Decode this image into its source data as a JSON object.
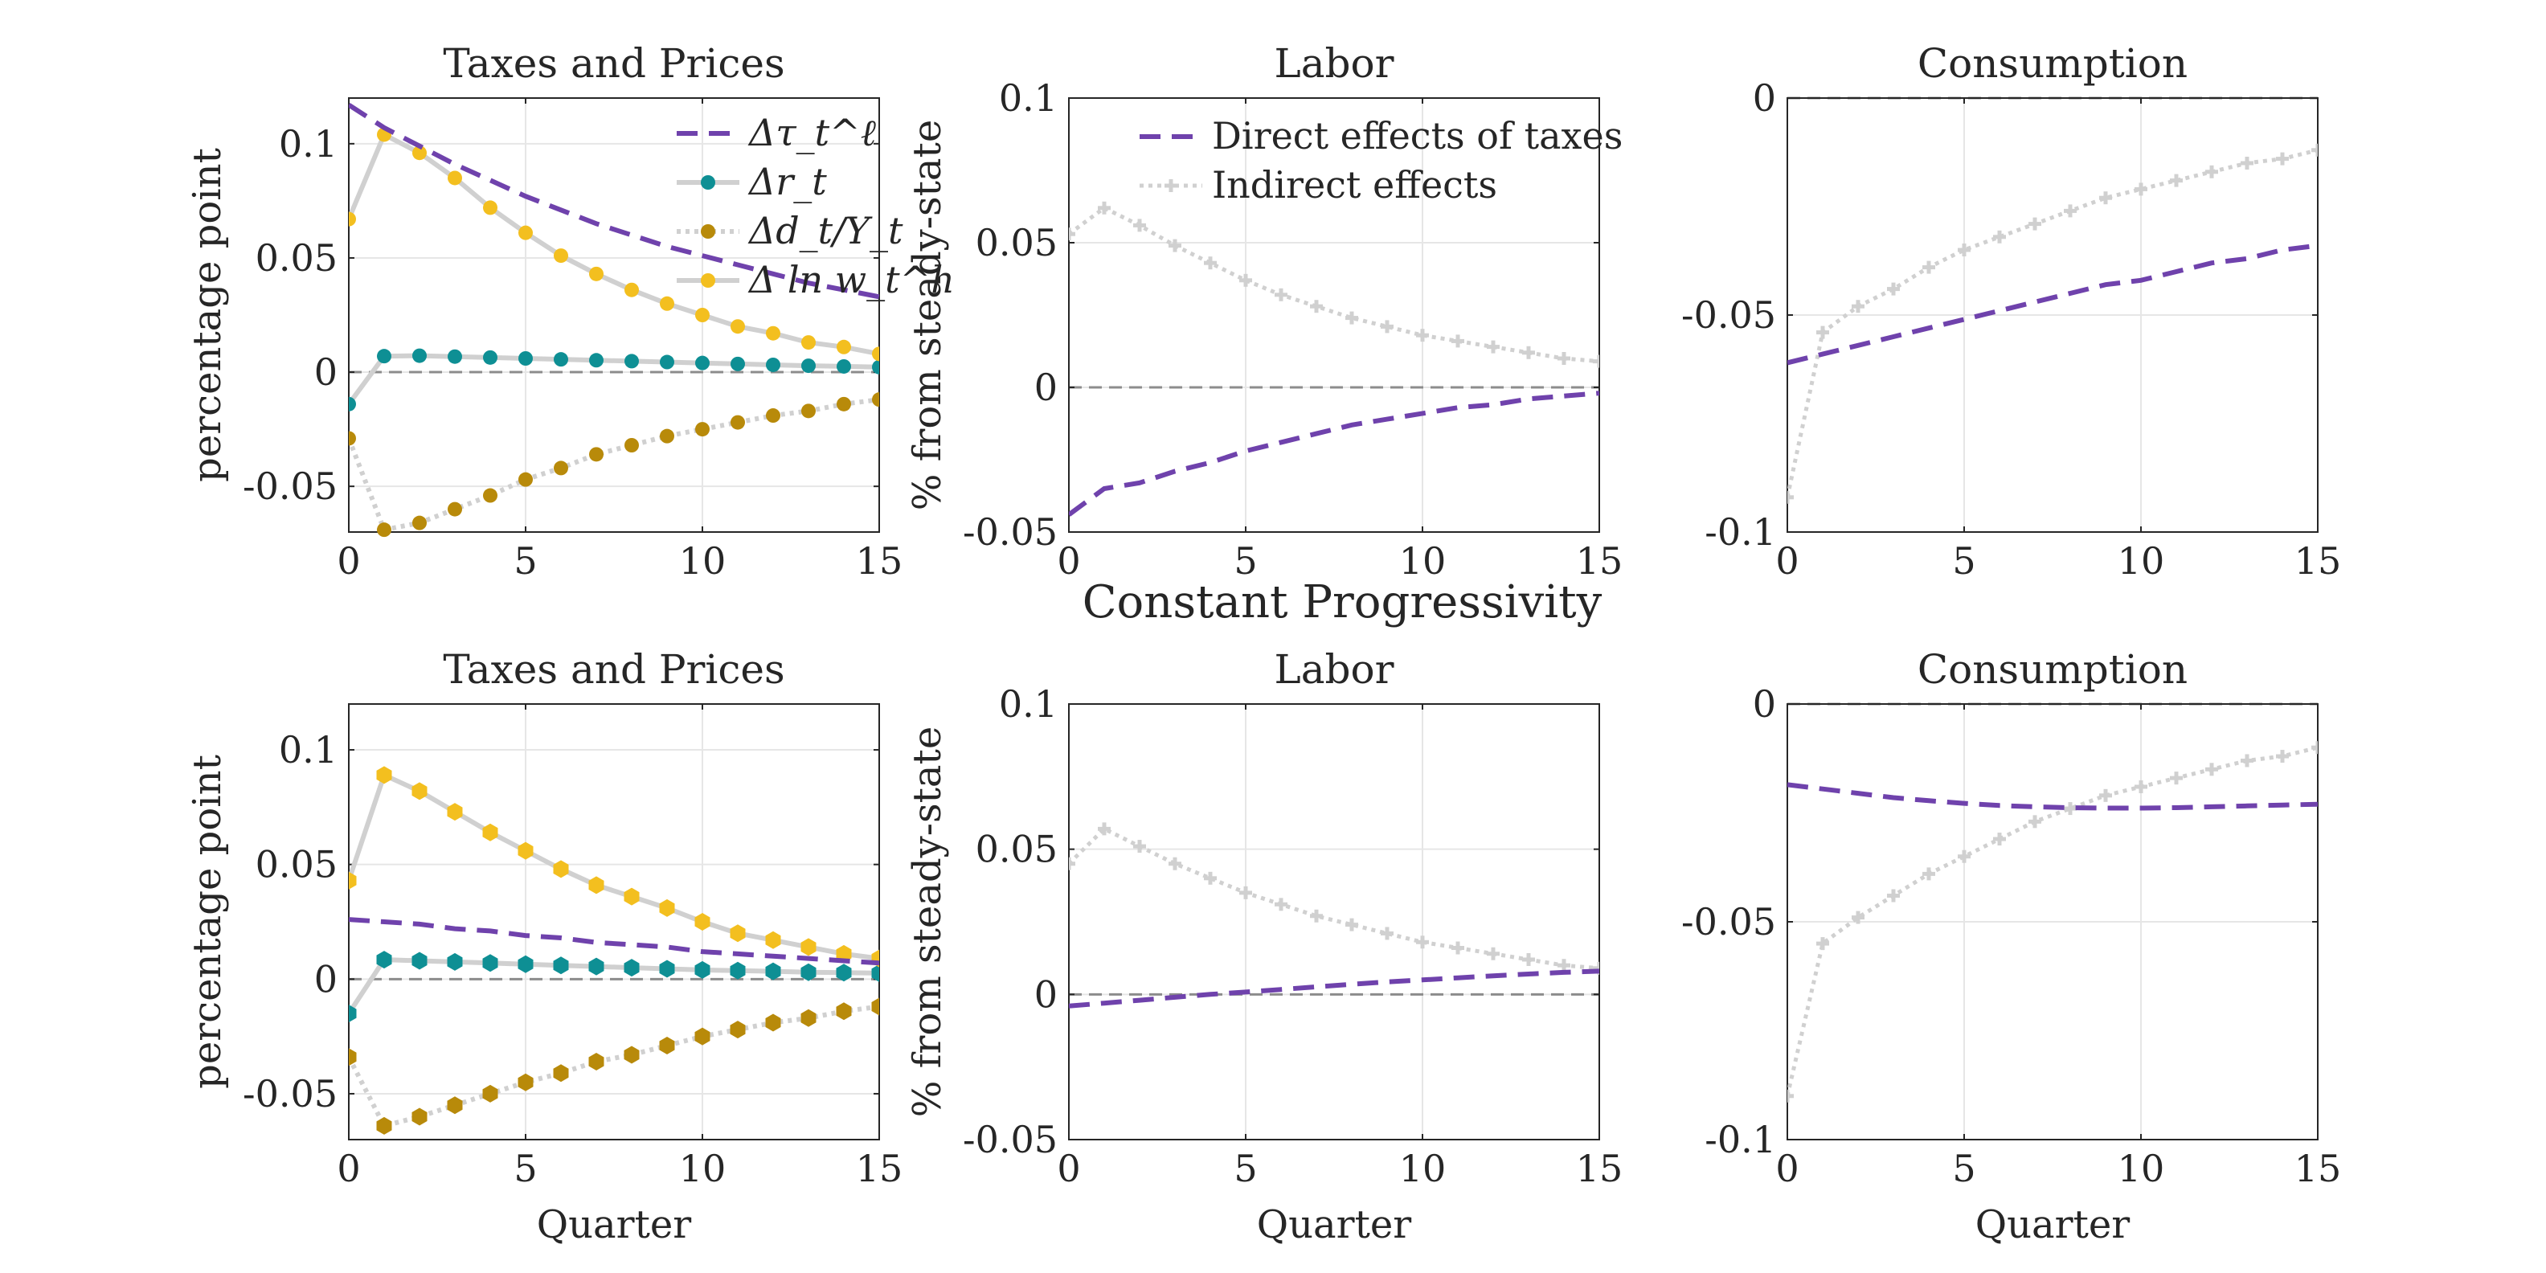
{
  "figure": {
    "row_title": "Constant Progressivity",
    "colors": {
      "tax": "#6f42ac",
      "r": "#0e8f94",
      "d": "#b88a0a",
      "w": "#f3bf1f",
      "gray_line": "#d0d0d0",
      "zero_line": "#8c8c8c",
      "axis": "#262626",
      "grid": "#e6e6e6"
    }
  },
  "chart_data": [
    {
      "id": "top-taxes",
      "type": "line",
      "title": "Taxes and Prices",
      "xlabel": "",
      "ylabel": "percentage point",
      "xlim": [
        0,
        15
      ],
      "ylim": [
        -0.07,
        0.12
      ],
      "xticks": [
        0,
        5,
        10,
        15
      ],
      "yticks": [
        -0.05,
        0,
        0.05,
        0.1
      ],
      "ytick_labels": [
        "-0.05",
        "0",
        "0.05",
        "0.1"
      ],
      "legend": {
        "position": "top-right",
        "entries": [
          "Δτ_t^ℓ",
          "Δr_t",
          "Δd_t/Y_t",
          "Δ ln w_t^h"
        ]
      },
      "series": [
        {
          "key": "tax",
          "name": "Δτ_t^ℓ",
          "style": "dashed",
          "x": [
            0,
            1,
            2,
            3,
            4,
            5,
            6,
            7,
            8,
            9,
            10,
            11,
            12,
            13,
            14,
            15
          ],
          "values": [
            0.117,
            0.107,
            0.099,
            0.091,
            0.084,
            0.077,
            0.071,
            0.065,
            0.06,
            0.055,
            0.051,
            0.047,
            0.043,
            0.039,
            0.036,
            0.033
          ]
        },
        {
          "key": "r",
          "name": "Δr_t",
          "style": "marker-line",
          "marker": "circle",
          "x": [
            0,
            1,
            2,
            3,
            4,
            5,
            6,
            7,
            8,
            9,
            10,
            11,
            12,
            13,
            14,
            15
          ],
          "values": [
            -0.014,
            0.007,
            0.0072,
            0.0068,
            0.0064,
            0.006,
            0.0056,
            0.0052,
            0.0048,
            0.0044,
            0.004,
            0.0036,
            0.0032,
            0.0028,
            0.0025,
            0.0022
          ]
        },
        {
          "key": "d",
          "name": "Δd_t/Y_t",
          "style": "marker-dotted",
          "marker": "circle",
          "x": [
            0,
            1,
            2,
            3,
            4,
            5,
            6,
            7,
            8,
            9,
            10,
            11,
            12,
            13,
            14,
            15
          ],
          "values": [
            -0.029,
            -0.069,
            -0.066,
            -0.06,
            -0.054,
            -0.047,
            -0.042,
            -0.036,
            -0.032,
            -0.028,
            -0.025,
            -0.022,
            -0.019,
            -0.017,
            -0.014,
            -0.012
          ]
        },
        {
          "key": "w",
          "name": "Δ ln w_t^h",
          "style": "marker-line",
          "marker": "circle",
          "x": [
            0,
            1,
            2,
            3,
            4,
            5,
            6,
            7,
            8,
            9,
            10,
            11,
            12,
            13,
            14,
            15
          ],
          "values": [
            0.067,
            0.104,
            0.096,
            0.085,
            0.072,
            0.061,
            0.051,
            0.043,
            0.036,
            0.03,
            0.025,
            0.02,
            0.017,
            0.013,
            0.011,
            0.008
          ]
        }
      ]
    },
    {
      "id": "top-labor",
      "type": "line",
      "title": "Labor",
      "xlabel": "",
      "ylabel": "% from steady-state",
      "xlim": [
        0,
        15
      ],
      "ylim": [
        -0.05,
        0.1
      ],
      "xticks": [
        0,
        5,
        10,
        15
      ],
      "yticks": [
        -0.05,
        0,
        0.05,
        0.1
      ],
      "ytick_labels": [
        "-0.05",
        "0",
        "0.05",
        "0.1"
      ],
      "legend": {
        "position": "top-right",
        "entries": [
          "Direct effects of taxes",
          "Indirect effects"
        ]
      },
      "series": [
        {
          "key": "direct",
          "name": "Direct effects of taxes",
          "style": "dashed",
          "x": [
            0,
            1,
            2,
            3,
            4,
            5,
            6,
            7,
            8,
            9,
            10,
            11,
            12,
            13,
            14,
            15
          ],
          "values": [
            -0.044,
            -0.035,
            -0.033,
            -0.029,
            -0.026,
            -0.022,
            -0.019,
            -0.016,
            -0.013,
            -0.011,
            -0.009,
            -0.007,
            -0.006,
            -0.004,
            -0.003,
            -0.002
          ]
        },
        {
          "key": "indirect",
          "name": "Indirect effects",
          "style": "cross-dotted",
          "x": [
            0,
            1,
            2,
            3,
            4,
            5,
            6,
            7,
            8,
            9,
            10,
            11,
            12,
            13,
            14,
            15
          ],
          "values": [
            0.053,
            0.062,
            0.056,
            0.049,
            0.043,
            0.037,
            0.032,
            0.028,
            0.024,
            0.021,
            0.018,
            0.016,
            0.014,
            0.012,
            0.01,
            0.009
          ]
        }
      ]
    },
    {
      "id": "top-consumption",
      "type": "line",
      "title": "Consumption",
      "xlabel": "",
      "ylabel": "",
      "xlim": [
        0,
        15
      ],
      "ylim": [
        -0.1,
        0
      ],
      "xticks": [
        0,
        5,
        10,
        15
      ],
      "yticks": [
        -0.1,
        -0.05,
        0
      ],
      "ytick_labels": [
        "-0.1",
        "-0.05",
        "0"
      ],
      "series": [
        {
          "key": "direct",
          "style": "dashed",
          "x": [
            0,
            1,
            2,
            3,
            4,
            5,
            6,
            7,
            8,
            9,
            10,
            11,
            12,
            13,
            14,
            15
          ],
          "values": [
            -0.061,
            -0.059,
            -0.057,
            -0.055,
            -0.053,
            -0.051,
            -0.049,
            -0.047,
            -0.045,
            -0.043,
            -0.042,
            -0.04,
            -0.038,
            -0.037,
            -0.035,
            -0.034
          ]
        },
        {
          "key": "indirect",
          "style": "cross-dotted",
          "x": [
            0,
            1,
            2,
            3,
            4,
            5,
            6,
            7,
            8,
            9,
            10,
            11,
            12,
            13,
            14,
            15
          ],
          "values": [
            -0.092,
            -0.054,
            -0.048,
            -0.044,
            -0.039,
            -0.035,
            -0.032,
            -0.029,
            -0.026,
            -0.023,
            -0.021,
            -0.019,
            -0.017,
            -0.015,
            -0.014,
            -0.012
          ]
        }
      ]
    },
    {
      "id": "bottom-taxes",
      "type": "line",
      "title": "Taxes and Prices",
      "xlabel": "Quarter",
      "ylabel": "percentage point",
      "xlim": [
        0,
        15
      ],
      "ylim": [
        -0.07,
        0.12
      ],
      "xticks": [
        0,
        5,
        10,
        15
      ],
      "yticks": [
        -0.05,
        0,
        0.05,
        0.1
      ],
      "ytick_labels": [
        "-0.05",
        "0",
        "0.05",
        "0.1"
      ],
      "series": [
        {
          "key": "tax",
          "style": "dashed",
          "x": [
            0,
            1,
            2,
            3,
            4,
            5,
            6,
            7,
            8,
            9,
            10,
            11,
            12,
            13,
            14,
            15
          ],
          "values": [
            0.026,
            0.025,
            0.024,
            0.022,
            0.021,
            0.019,
            0.018,
            0.016,
            0.015,
            0.014,
            0.012,
            0.011,
            0.01,
            0.009,
            0.008,
            0.007
          ]
        },
        {
          "key": "r",
          "style": "marker-line",
          "marker": "hexagon",
          "x": [
            0,
            1,
            2,
            3,
            4,
            5,
            6,
            7,
            8,
            9,
            10,
            11,
            12,
            13,
            14,
            15
          ],
          "values": [
            -0.015,
            0.0085,
            0.008,
            0.0075,
            0.007,
            0.0065,
            0.006,
            0.0055,
            0.005,
            0.0045,
            0.004,
            0.0037,
            0.0034,
            0.003,
            0.0028,
            0.0026
          ]
        },
        {
          "key": "d",
          "style": "marker-dotted",
          "marker": "hexagon",
          "x": [
            0,
            1,
            2,
            3,
            4,
            5,
            6,
            7,
            8,
            9,
            10,
            11,
            12,
            13,
            14,
            15
          ],
          "values": [
            -0.034,
            -0.064,
            -0.06,
            -0.055,
            -0.05,
            -0.045,
            -0.041,
            -0.036,
            -0.033,
            -0.029,
            -0.025,
            -0.022,
            -0.019,
            -0.017,
            -0.014,
            -0.012
          ]
        },
        {
          "key": "w",
          "style": "marker-line",
          "marker": "hexagon",
          "x": [
            0,
            1,
            2,
            3,
            4,
            5,
            6,
            7,
            8,
            9,
            10,
            11,
            12,
            13,
            14,
            15
          ],
          "values": [
            0.043,
            0.089,
            0.082,
            0.073,
            0.064,
            0.056,
            0.048,
            0.041,
            0.036,
            0.031,
            0.025,
            0.02,
            0.017,
            0.014,
            0.011,
            0.009
          ]
        }
      ]
    },
    {
      "id": "bottom-labor",
      "type": "line",
      "title": "Labor",
      "xlabel": "Quarter",
      "ylabel": "% from steady-state",
      "xlim": [
        0,
        15
      ],
      "ylim": [
        -0.05,
        0.1
      ],
      "xticks": [
        0,
        5,
        10,
        15
      ],
      "yticks": [
        -0.05,
        0,
        0.05,
        0.1
      ],
      "ytick_labels": [
        "-0.05",
        "0",
        "0.05",
        "0.1"
      ],
      "series": [
        {
          "key": "direct",
          "style": "dashed",
          "x": [
            0,
            1,
            2,
            3,
            4,
            5,
            6,
            7,
            8,
            9,
            10,
            11,
            12,
            13,
            14,
            15
          ],
          "values": [
            -0.004,
            -0.003,
            -0.002,
            -0.001,
            0.0,
            0.0008,
            0.0017,
            0.0026,
            0.0035,
            0.0043,
            0.005,
            0.0057,
            0.0064,
            0.007,
            0.0076,
            0.008
          ]
        },
        {
          "key": "indirect",
          "style": "cross-dotted",
          "x": [
            0,
            1,
            2,
            3,
            4,
            5,
            6,
            7,
            8,
            9,
            10,
            11,
            12,
            13,
            14,
            15
          ],
          "values": [
            0.045,
            0.057,
            0.051,
            0.045,
            0.04,
            0.035,
            0.031,
            0.027,
            0.024,
            0.021,
            0.018,
            0.016,
            0.014,
            0.012,
            0.01,
            0.009
          ]
        }
      ]
    },
    {
      "id": "bottom-consumption",
      "type": "line",
      "title": "Consumption",
      "xlabel": "Quarter",
      "ylabel": "",
      "xlim": [
        0,
        15
      ],
      "ylim": [
        -0.1,
        0
      ],
      "xticks": [
        0,
        5,
        10,
        15
      ],
      "yticks": [
        -0.1,
        -0.05,
        0
      ],
      "ytick_labels": [
        "-0.1",
        "-0.05",
        "0"
      ],
      "series": [
        {
          "key": "direct",
          "style": "dashed",
          "x": [
            0,
            1,
            2,
            3,
            4,
            5,
            6,
            7,
            8,
            9,
            10,
            11,
            12,
            13,
            14,
            15
          ],
          "values": [
            -0.0185,
            -0.0195,
            -0.0205,
            -0.0215,
            -0.0222,
            -0.0228,
            -0.0233,
            -0.0236,
            -0.0238,
            -0.0239,
            -0.0239,
            -0.0238,
            -0.0236,
            -0.0234,
            -0.0232,
            -0.023
          ]
        },
        {
          "key": "indirect",
          "style": "cross-dotted",
          "x": [
            0,
            1,
            2,
            3,
            4,
            5,
            6,
            7,
            8,
            9,
            10,
            11,
            12,
            13,
            14,
            15
          ],
          "values": [
            -0.09,
            -0.055,
            -0.049,
            -0.044,
            -0.039,
            -0.035,
            -0.031,
            -0.027,
            -0.024,
            -0.021,
            -0.019,
            -0.017,
            -0.015,
            -0.013,
            -0.012,
            -0.01
          ]
        }
      ]
    }
  ]
}
